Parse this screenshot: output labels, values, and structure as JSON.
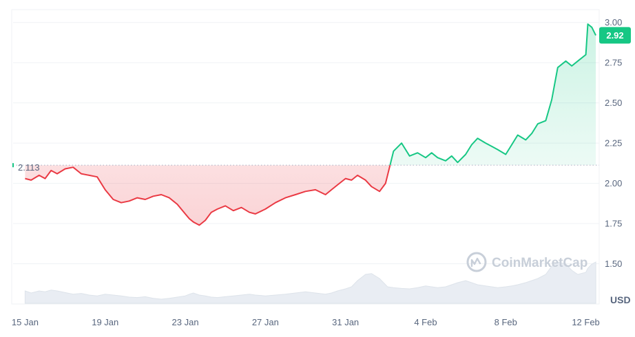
{
  "chart_data": {
    "type": "line",
    "currency_label": "USD",
    "baseline": {
      "value": 2.113,
      "label": "2.113"
    },
    "current_price": {
      "value": 2.92,
      "label": "2.92"
    },
    "ylim": [
      1.25,
      3.08
    ],
    "y_ticks": [
      {
        "value": 3.0,
        "label": "3.00"
      },
      {
        "value": 2.75,
        "label": "2.75"
      },
      {
        "value": 2.5,
        "label": "2.50"
      },
      {
        "value": 2.25,
        "label": "2.25"
      },
      {
        "value": 2.0,
        "label": "2.00"
      },
      {
        "value": 1.75,
        "label": "1.75"
      },
      {
        "value": 1.5,
        "label": "1.50"
      }
    ],
    "x_ticks": [
      {
        "day": 0,
        "label": "15 Jan"
      },
      {
        "day": 4,
        "label": "19 Jan"
      },
      {
        "day": 8,
        "label": "23 Jan"
      },
      {
        "day": 12,
        "label": "27 Jan"
      },
      {
        "day": 16,
        "label": "31 Jan"
      },
      {
        "day": 20,
        "label": "4 Feb"
      },
      {
        "day": 24,
        "label": "8 Feb"
      },
      {
        "day": 28,
        "label": "12 Feb"
      }
    ],
    "xlim": [
      -0.6,
      28.6
    ],
    "series": [
      {
        "x": [
          0,
          0.3,
          0.7,
          1,
          1.3,
          1.6,
          2,
          2.4,
          2.8,
          3.2,
          3.6,
          4,
          4.4,
          4.8,
          5.2,
          5.6,
          6,
          6.4,
          6.8,
          7.2,
          7.6,
          8,
          8.2,
          8.4,
          8.7,
          9,
          9.3,
          9.6,
          10,
          10.4,
          10.8,
          11.2,
          11.5,
          12,
          12.5,
          13,
          13.5,
          14,
          14.5,
          15,
          15.3,
          15.6,
          16,
          16.3,
          16.6,
          17,
          17.3,
          17.7,
          18,
          18.1,
          18.4,
          18.8,
          19.2,
          19.6,
          20,
          20.3,
          20.6,
          21,
          21.3,
          21.6,
          22,
          22.3,
          22.6,
          23,
          23.3,
          23.6,
          24,
          24.3,
          24.6,
          25,
          25.3,
          25.6,
          26,
          26.3,
          26.6,
          27,
          27.3,
          27.6,
          28,
          28.1,
          28.3,
          28.5
        ],
        "y": [
          2.03,
          2.02,
          2.05,
          2.03,
          2.08,
          2.06,
          2.09,
          2.1,
          2.06,
          2.05,
          2.04,
          1.96,
          1.9,
          1.88,
          1.89,
          1.91,
          1.9,
          1.92,
          1.93,
          1.91,
          1.87,
          1.81,
          1.78,
          1.76,
          1.74,
          1.77,
          1.82,
          1.84,
          1.86,
          1.83,
          1.85,
          1.82,
          1.81,
          1.84,
          1.88,
          1.91,
          1.93,
          1.95,
          1.96,
          1.93,
          1.96,
          1.99,
          2.03,
          2.02,
          2.05,
          2.02,
          1.98,
          1.95,
          2.0,
          2.05,
          2.2,
          2.25,
          2.17,
          2.19,
          2.16,
          2.19,
          2.16,
          2.14,
          2.17,
          2.13,
          2.18,
          2.24,
          2.28,
          2.25,
          2.23,
          2.21,
          2.18,
          2.24,
          2.3,
          2.27,
          2.31,
          2.37,
          2.39,
          2.52,
          2.72,
          2.76,
          2.73,
          2.76,
          2.8,
          2.99,
          2.97,
          2.92
        ],
        "volume": [
          0.3,
          0.25,
          0.3,
          0.28,
          0.32,
          0.3,
          0.26,
          0.22,
          0.24,
          0.2,
          0.18,
          0.22,
          0.2,
          0.18,
          0.15,
          0.14,
          0.16,
          0.12,
          0.1,
          0.12,
          0.15,
          0.18,
          0.22,
          0.25,
          0.2,
          0.18,
          0.15,
          0.14,
          0.16,
          0.18,
          0.2,
          0.22,
          0.2,
          0.18,
          0.2,
          0.22,
          0.25,
          0.28,
          0.25,
          0.22,
          0.25,
          0.3,
          0.35,
          0.4,
          0.55,
          0.7,
          0.72,
          0.6,
          0.45,
          0.4,
          0.38,
          0.36,
          0.35,
          0.38,
          0.42,
          0.4,
          0.38,
          0.4,
          0.45,
          0.5,
          0.55,
          0.5,
          0.45,
          0.42,
          0.4,
          0.38,
          0.4,
          0.42,
          0.45,
          0.5,
          0.55,
          0.6,
          0.7,
          0.9,
          1.0,
          0.95,
          0.8,
          0.7,
          0.75,
          0.85,
          0.95,
          1.0
        ]
      }
    ]
  },
  "watermark": {
    "text": "CoinMarketCap"
  },
  "colors": {
    "up": "#16c784",
    "down": "#ea3943",
    "grid": "#eff2f5",
    "volume": "#e9edf3"
  },
  "icons": {
    "watermark_logo": "coinmarketcap-logo-icon"
  }
}
